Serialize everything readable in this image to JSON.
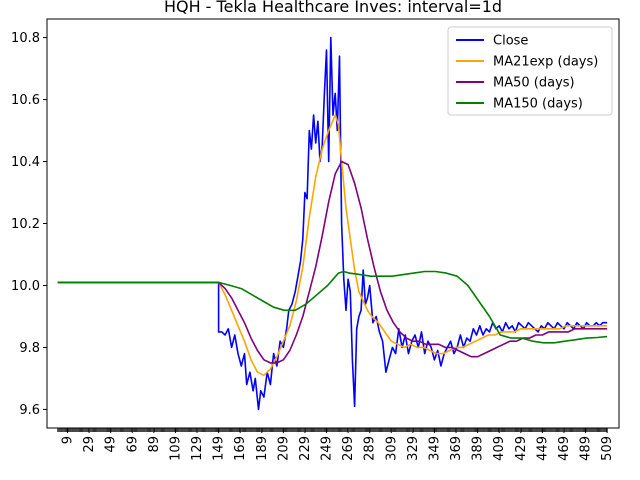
{
  "chart_data": {
    "type": "line",
    "title": "HQH - Tekla Healthcare Inves: interval=1d",
    "xlabel": "",
    "ylabel": "",
    "xlim": [
      -10,
      520
    ],
    "ylim": [
      9.54,
      10.86
    ],
    "x_ticks": [
      9,
      29,
      49,
      69,
      89,
      109,
      129,
      149,
      169,
      189,
      209,
      229,
      249,
      269,
      289,
      309,
      329,
      349,
      369,
      389,
      409,
      429,
      449,
      469,
      489,
      509
    ],
    "y_ticks": [
      9.6,
      9.8,
      10.0,
      10.2,
      10.4,
      10.6,
      10.8
    ],
    "y_tick_labels": [
      "9.6",
      "9.8",
      "10.0",
      "10.2",
      "10.4",
      "10.6",
      "10.8"
    ],
    "legend_position": "top-right",
    "grid": false,
    "series": [
      {
        "name": "Close",
        "color": "#0000ff",
        "points": [
          [
            0,
            10.01
          ],
          [
            50,
            10.01
          ],
          [
            149,
            10.01
          ],
          [
            149,
            9.85
          ],
          [
            152,
            9.85
          ],
          [
            155,
            9.84
          ],
          [
            158,
            9.86
          ],
          [
            161,
            9.8
          ],
          [
            164,
            9.84
          ],
          [
            167,
            9.78
          ],
          [
            170,
            9.74
          ],
          [
            173,
            9.78
          ],
          [
            175,
            9.68
          ],
          [
            178,
            9.72
          ],
          [
            181,
            9.66
          ],
          [
            183,
            9.7
          ],
          [
            186,
            9.6
          ],
          [
            188,
            9.66
          ],
          [
            191,
            9.64
          ],
          [
            194,
            9.72
          ],
          [
            197,
            9.68
          ],
          [
            200,
            9.78
          ],
          [
            203,
            9.74
          ],
          [
            206,
            9.82
          ],
          [
            209,
            9.8
          ],
          [
            212,
            9.86
          ],
          [
            214,
            9.92
          ],
          [
            217,
            9.94
          ],
          [
            220,
            9.98
          ],
          [
            222,
            10.02
          ],
          [
            225,
            10.08
          ],
          [
            227,
            10.15
          ],
          [
            229,
            10.3
          ],
          [
            231,
            10.28
          ],
          [
            233,
            10.5
          ],
          [
            235,
            10.44
          ],
          [
            237,
            10.55
          ],
          [
            239,
            10.46
          ],
          [
            241,
            10.53
          ],
          [
            243,
            10.4
          ],
          [
            245,
            10.45
          ],
          [
            247,
            10.62
          ],
          [
            249,
            10.76
          ],
          [
            251,
            10.4
          ],
          [
            253,
            10.8
          ],
          [
            255,
            10.55
          ],
          [
            257,
            10.62
          ],
          [
            259,
            10.5
          ],
          [
            261,
            10.74
          ],
          [
            263,
            10.2
          ],
          [
            265,
            10.02
          ],
          [
            267,
            9.92
          ],
          [
            269,
            10.02
          ],
          [
            271,
            9.98
          ],
          [
            273,
            9.76
          ],
          [
            275,
            9.61
          ],
          [
            277,
            9.86
          ],
          [
            279,
            9.9
          ],
          [
            281,
            9.92
          ],
          [
            283,
            10.05
          ],
          [
            285,
            9.94
          ],
          [
            287,
            9.96
          ],
          [
            289,
            10.0
          ],
          [
            292,
            9.88
          ],
          [
            295,
            9.9
          ],
          [
            298,
            9.85
          ],
          [
            301,
            9.82
          ],
          [
            304,
            9.72
          ],
          [
            307,
            9.76
          ],
          [
            310,
            9.8
          ],
          [
            313,
            9.78
          ],
          [
            316,
            9.86
          ],
          [
            319,
            9.8
          ],
          [
            322,
            9.84
          ],
          [
            325,
            9.78
          ],
          [
            328,
            9.82
          ],
          [
            331,
            9.84
          ],
          [
            334,
            9.8
          ],
          [
            337,
            9.85
          ],
          [
            340,
            9.78
          ],
          [
            343,
            9.82
          ],
          [
            346,
            9.8
          ],
          [
            349,
            9.76
          ],
          [
            352,
            9.79
          ],
          [
            355,
            9.74
          ],
          [
            358,
            9.78
          ],
          [
            361,
            9.8
          ],
          [
            364,
            9.82
          ],
          [
            367,
            9.78
          ],
          [
            370,
            9.8
          ],
          [
            373,
            9.84
          ],
          [
            376,
            9.8
          ],
          [
            379,
            9.83
          ],
          [
            382,
            9.82
          ],
          [
            385,
            9.86
          ],
          [
            388,
            9.84
          ],
          [
            391,
            9.87
          ],
          [
            394,
            9.84
          ],
          [
            397,
            9.86
          ],
          [
            400,
            9.85
          ],
          [
            403,
            9.88
          ],
          [
            406,
            9.86
          ],
          [
            409,
            9.87
          ],
          [
            412,
            9.85
          ],
          [
            415,
            9.88
          ],
          [
            418,
            9.86
          ],
          [
            421,
            9.87
          ],
          [
            424,
            9.85
          ],
          [
            427,
            9.88
          ],
          [
            430,
            9.87
          ],
          [
            433,
            9.86
          ],
          [
            436,
            9.88
          ],
          [
            439,
            9.87
          ],
          [
            442,
            9.86
          ],
          [
            445,
            9.85
          ],
          [
            448,
            9.87
          ],
          [
            451,
            9.86
          ],
          [
            454,
            9.88
          ],
          [
            457,
            9.87
          ],
          [
            460,
            9.86
          ],
          [
            463,
            9.88
          ],
          [
            466,
            9.87
          ],
          [
            469,
            9.86
          ],
          [
            472,
            9.88
          ],
          [
            475,
            9.87
          ],
          [
            478,
            9.86
          ],
          [
            481,
            9.88
          ],
          [
            484,
            9.87
          ],
          [
            487,
            9.86
          ],
          [
            490,
            9.88
          ],
          [
            493,
            9.87
          ],
          [
            496,
            9.87
          ],
          [
            499,
            9.88
          ],
          [
            502,
            9.87
          ],
          [
            505,
            9.88
          ],
          [
            509,
            9.88
          ]
        ]
      },
      {
        "name": "MA21exp (days)",
        "color": "#ffa500",
        "points": [
          [
            0,
            10.01
          ],
          [
            149,
            10.01
          ],
          [
            155,
            9.97
          ],
          [
            161,
            9.92
          ],
          [
            167,
            9.87
          ],
          [
            173,
            9.82
          ],
          [
            179,
            9.76
          ],
          [
            185,
            9.72
          ],
          [
            191,
            9.71
          ],
          [
            197,
            9.73
          ],
          [
            203,
            9.77
          ],
          [
            209,
            9.82
          ],
          [
            215,
            9.87
          ],
          [
            221,
            9.95
          ],
          [
            227,
            10.06
          ],
          [
            233,
            10.22
          ],
          [
            239,
            10.35
          ],
          [
            245,
            10.44
          ],
          [
            251,
            10.5
          ],
          [
            257,
            10.55
          ],
          [
            260,
            10.52
          ],
          [
            263,
            10.4
          ],
          [
            267,
            10.25
          ],
          [
            271,
            10.15
          ],
          [
            275,
            10.05
          ],
          [
            279,
            9.98
          ],
          [
            283,
            9.95
          ],
          [
            287,
            9.92
          ],
          [
            291,
            9.9
          ],
          [
            297,
            9.88
          ],
          [
            303,
            9.85
          ],
          [
            309,
            9.82
          ],
          [
            315,
            9.81
          ],
          [
            321,
            9.8
          ],
          [
            327,
            9.81
          ],
          [
            333,
            9.8
          ],
          [
            339,
            9.8
          ],
          [
            345,
            9.79
          ],
          [
            351,
            9.78
          ],
          [
            357,
            9.78
          ],
          [
            363,
            9.79
          ],
          [
            369,
            9.8
          ],
          [
            375,
            9.8
          ],
          [
            381,
            9.81
          ],
          [
            387,
            9.82
          ],
          [
            393,
            9.83
          ],
          [
            399,
            9.84
          ],
          [
            405,
            9.84
          ],
          [
            411,
            9.85
          ],
          [
            417,
            9.85
          ],
          [
            423,
            9.85
          ],
          [
            429,
            9.86
          ],
          [
            435,
            9.86
          ],
          [
            441,
            9.86
          ],
          [
            447,
            9.86
          ],
          [
            453,
            9.86
          ],
          [
            459,
            9.86
          ],
          [
            465,
            9.86
          ],
          [
            471,
            9.87
          ],
          [
            477,
            9.87
          ],
          [
            483,
            9.87
          ],
          [
            489,
            9.87
          ],
          [
            495,
            9.87
          ],
          [
            501,
            9.87
          ],
          [
            509,
            9.87
          ]
        ]
      },
      {
        "name": "MA50 (days)",
        "color": "#800080",
        "points": [
          [
            0,
            10.01
          ],
          [
            149,
            10.01
          ],
          [
            155,
            9.99
          ],
          [
            161,
            9.96
          ],
          [
            167,
            9.92
          ],
          [
            173,
            9.88
          ],
          [
            179,
            9.83
          ],
          [
            185,
            9.79
          ],
          [
            191,
            9.76
          ],
          [
            197,
            9.75
          ],
          [
            203,
            9.75
          ],
          [
            209,
            9.76
          ],
          [
            215,
            9.79
          ],
          [
            221,
            9.84
          ],
          [
            227,
            9.9
          ],
          [
            233,
            9.98
          ],
          [
            239,
            10.06
          ],
          [
            245,
            10.16
          ],
          [
            251,
            10.27
          ],
          [
            257,
            10.36
          ],
          [
            263,
            10.4
          ],
          [
            269,
            10.39
          ],
          [
            275,
            10.33
          ],
          [
            281,
            10.25
          ],
          [
            287,
            10.15
          ],
          [
            293,
            10.06
          ],
          [
            299,
            9.98
          ],
          [
            305,
            9.92
          ],
          [
            311,
            9.88
          ],
          [
            317,
            9.85
          ],
          [
            323,
            9.83
          ],
          [
            329,
            9.82
          ],
          [
            335,
            9.82
          ],
          [
            341,
            9.81
          ],
          [
            347,
            9.81
          ],
          [
            353,
            9.81
          ],
          [
            359,
            9.8
          ],
          [
            365,
            9.8
          ],
          [
            371,
            9.79
          ],
          [
            377,
            9.78
          ],
          [
            383,
            9.77
          ],
          [
            389,
            9.77
          ],
          [
            395,
            9.78
          ],
          [
            401,
            9.79
          ],
          [
            407,
            9.8
          ],
          [
            413,
            9.81
          ],
          [
            419,
            9.82
          ],
          [
            425,
            9.82
          ],
          [
            431,
            9.83
          ],
          [
            437,
            9.83
          ],
          [
            443,
            9.84
          ],
          [
            449,
            9.84
          ],
          [
            455,
            9.85
          ],
          [
            461,
            9.85
          ],
          [
            467,
            9.85
          ],
          [
            473,
            9.85
          ],
          [
            479,
            9.86
          ],
          [
            485,
            9.86
          ],
          [
            491,
            9.86
          ],
          [
            497,
            9.86
          ],
          [
            503,
            9.86
          ],
          [
            509,
            9.86
          ]
        ]
      },
      {
        "name": "MA150 (days)",
        "color": "#008000",
        "points": [
          [
            0,
            10.01
          ],
          [
            149,
            10.01
          ],
          [
            160,
            10.0
          ],
          [
            170,
            9.99
          ],
          [
            180,
            9.97
          ],
          [
            190,
            9.95
          ],
          [
            200,
            9.93
          ],
          [
            210,
            9.92
          ],
          [
            220,
            9.92
          ],
          [
            230,
            9.94
          ],
          [
            240,
            9.97
          ],
          [
            250,
            10.0
          ],
          [
            255,
            10.02
          ],
          [
            260,
            10.04
          ],
          [
            265,
            10.045
          ],
          [
            270,
            10.04
          ],
          [
            280,
            10.035
          ],
          [
            290,
            10.03
          ],
          [
            300,
            10.03
          ],
          [
            310,
            10.03
          ],
          [
            320,
            10.035
          ],
          [
            330,
            10.04
          ],
          [
            340,
            10.045
          ],
          [
            350,
            10.045
          ],
          [
            360,
            10.04
          ],
          [
            370,
            10.03
          ],
          [
            380,
            10.0
          ],
          [
            390,
            9.95
          ],
          [
            400,
            9.9
          ],
          [
            405,
            9.87
          ],
          [
            410,
            9.84
          ],
          [
            420,
            9.83
          ],
          [
            430,
            9.83
          ],
          [
            440,
            9.82
          ],
          [
            450,
            9.815
          ],
          [
            460,
            9.815
          ],
          [
            470,
            9.82
          ],
          [
            480,
            9.825
          ],
          [
            490,
            9.83
          ],
          [
            500,
            9.832
          ],
          [
            509,
            9.835
          ]
        ]
      }
    ]
  }
}
